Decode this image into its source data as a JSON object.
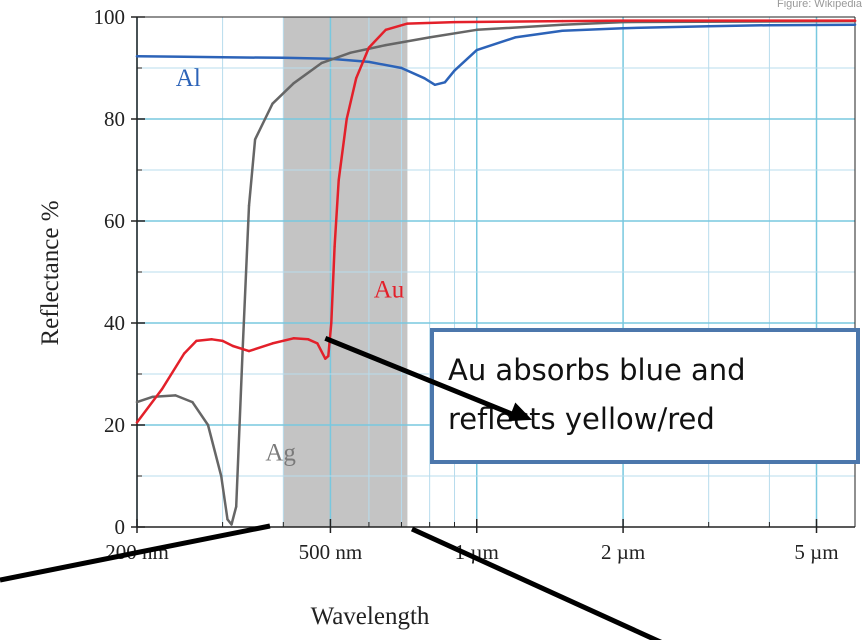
{
  "source_note": "Figure: Wikipedia",
  "chart_data": {
    "type": "line",
    "title": "",
    "xlabel": "Wavelength",
    "ylabel": "Reflectance %",
    "x_scale": "log",
    "x_unit": "nm",
    "xlim": [
      200,
      6000
    ],
    "ylim": [
      0,
      100
    ],
    "grid": true,
    "x_ticks": [
      {
        "value": 200,
        "label": "200 nm"
      },
      {
        "value": 500,
        "label": "500 nm"
      },
      {
        "value": 1000,
        "label": "1 µm"
      },
      {
        "value": 2000,
        "label": "2 µm"
      },
      {
        "value": 5000,
        "label": "5 µm"
      }
    ],
    "y_ticks": [
      {
        "value": 0,
        "label": "0"
      },
      {
        "value": 20,
        "label": "20"
      },
      {
        "value": 40,
        "label": "40"
      },
      {
        "value": 60,
        "label": "60"
      },
      {
        "value": 80,
        "label": "80"
      },
      {
        "value": 100,
        "label": "100"
      }
    ],
    "visible_band": {
      "from": 400,
      "to": 720,
      "color": "#c4c4c4"
    },
    "series": [
      {
        "name": "Al",
        "color": "#2c63b8",
        "points": [
          [
            200,
            92.3
          ],
          [
            250,
            92.2
          ],
          [
            300,
            92.1
          ],
          [
            400,
            92
          ],
          [
            500,
            91.8
          ],
          [
            600,
            91.2
          ],
          [
            700,
            90
          ],
          [
            780,
            88
          ],
          [
            820,
            86.7
          ],
          [
            860,
            87.2
          ],
          [
            900,
            89.5
          ],
          [
            1000,
            93.5
          ],
          [
            1200,
            96
          ],
          [
            1500,
            97.3
          ],
          [
            2000,
            97.8
          ],
          [
            3000,
            98.2
          ],
          [
            4000,
            98.4
          ],
          [
            6000,
            98.5
          ]
        ]
      },
      {
        "name": "Ag",
        "color": "#666666",
        "points": [
          [
            200,
            24.5
          ],
          [
            215,
            25.5
          ],
          [
            240,
            25.8
          ],
          [
            260,
            24.5
          ],
          [
            280,
            20
          ],
          [
            298,
            10
          ],
          [
            307,
            1.5
          ],
          [
            313,
            0.5
          ],
          [
            320,
            4
          ],
          [
            330,
            35
          ],
          [
            340,
            63
          ],
          [
            350,
            76
          ],
          [
            380,
            83
          ],
          [
            420,
            87
          ],
          [
            480,
            91
          ],
          [
            550,
            93
          ],
          [
            650,
            94.5
          ],
          [
            800,
            96
          ],
          [
            1000,
            97.5
          ],
          [
            1500,
            98.5
          ],
          [
            2000,
            99
          ],
          [
            6000,
            99.2
          ]
        ]
      },
      {
        "name": "Au",
        "color": "#e3202a",
        "points": [
          [
            200,
            20.5
          ],
          [
            225,
            27
          ],
          [
            250,
            34
          ],
          [
            265,
            36.5
          ],
          [
            285,
            36.8
          ],
          [
            300,
            36.5
          ],
          [
            315,
            35.5
          ],
          [
            340,
            34.5
          ],
          [
            380,
            36
          ],
          [
            420,
            37
          ],
          [
            450,
            36.8
          ],
          [
            470,
            36
          ],
          [
            488,
            33
          ],
          [
            495,
            33.5
          ],
          [
            502,
            40
          ],
          [
            510,
            55
          ],
          [
            520,
            68
          ],
          [
            540,
            80
          ],
          [
            565,
            88
          ],
          [
            600,
            94
          ],
          [
            650,
            97.5
          ],
          [
            720,
            98.7
          ],
          [
            900,
            99
          ],
          [
            1500,
            99.2
          ],
          [
            2000,
            99.3
          ],
          [
            6000,
            99.3
          ]
        ]
      }
    ],
    "annotations": [
      {
        "name": "Al",
        "x": 255,
        "y": 86.5,
        "color": "#2c63b8"
      },
      {
        "name": "Au",
        "x": 660,
        "y": 45,
        "color": "#e3202a"
      },
      {
        "name": "Ag",
        "x": 395,
        "y": 13,
        "color": "#7a7a7a"
      }
    ],
    "callout": {
      "lines": [
        "Au absorbs blue and",
        "reflects yellow/red"
      ],
      "arrow_from": [
        488,
        37
      ],
      "arrow_to": [
        1300,
        21
      ]
    }
  }
}
